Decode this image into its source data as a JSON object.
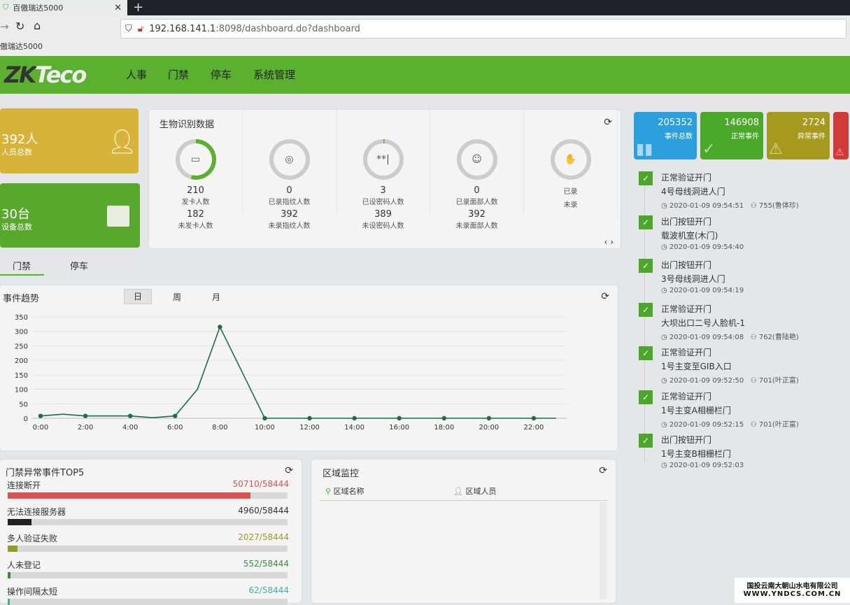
{
  "browser": {
    "tab_title": "百傲瑞达5000",
    "url_host": "192.168.141.1",
    "url_rest": ":8098/dashboard.do?dashboard",
    "bookmark": "傲瑞达5000"
  },
  "header": {
    "logo": "ZKTeco",
    "menu": [
      "人事",
      "门禁",
      "停车",
      "系统管理"
    ]
  },
  "summary": [
    {
      "value": "392人",
      "label": "人员总数",
      "color": "#d8b33a"
    },
    {
      "value": "30台",
      "label": "设备总数",
      "color": "#58a82e"
    }
  ],
  "bio": {
    "title": "生物识别数据",
    "items": [
      {
        "icon": "card-icon",
        "top_value": "210",
        "top_label": "发卡人数",
        "bottom_value": "182",
        "bottom_label": "未发卡人数",
        "fill": 0.54
      },
      {
        "icon": "fingerprint-icon",
        "top_value": "0",
        "top_label": "已录指纹人数",
        "bottom_value": "392",
        "bottom_label": "未录指纹人数",
        "fill": 0
      },
      {
        "icon": "password-icon",
        "top_value": "3",
        "top_label": "已设密码人数",
        "bottom_value": "389",
        "bottom_label": "未设密码人数",
        "fill": 0.01
      },
      {
        "icon": "face-icon",
        "top_value": "0",
        "top_label": "已录面部人数",
        "bottom_value": "392",
        "bottom_label": "未录面部人数",
        "fill": 0
      },
      {
        "icon": "palm-icon",
        "top_value": "",
        "top_label": "已录",
        "bottom_value": "",
        "bottom_label": "未录",
        "fill": 0
      }
    ]
  },
  "event_stats": [
    {
      "value": "205352",
      "label": "事件总数",
      "color": "#2d9fde"
    },
    {
      "value": "146908",
      "label": "正常事件",
      "color": "#4aa82a"
    },
    {
      "value": "2724",
      "label": "异常事件",
      "color": "#a59a1e"
    },
    {
      "value": "",
      "label": "",
      "color": "#d23a3a"
    }
  ],
  "tabs": [
    "门禁",
    "停车"
  ],
  "trend": {
    "title": "事件趋势",
    "periods": [
      "日",
      "周",
      "月"
    ],
    "active_period": "日"
  },
  "chart_data": {
    "type": "line",
    "x": [
      "0:00",
      "1:00",
      "2:00",
      "3:00",
      "4:00",
      "5:00",
      "6:00",
      "7:00",
      "8:00",
      "9:00",
      "10:00",
      "11:00",
      "12:00",
      "13:00",
      "14:00",
      "15:00",
      "16:00",
      "17:00",
      "18:00",
      "19:00",
      "20:00",
      "21:00",
      "22:00",
      "23:00"
    ],
    "xticks": [
      "0:00",
      "2:00",
      "4:00",
      "6:00",
      "8:00",
      "10:00",
      "12:00",
      "14:00",
      "16:00",
      "18:00",
      "20:00",
      "22:00"
    ],
    "values": [
      8,
      14,
      8,
      8,
      8,
      2,
      8,
      100,
      315,
      158,
      0,
      0,
      0,
      0,
      0,
      0,
      0,
      0,
      0,
      0,
      0,
      0,
      0,
      0
    ],
    "ylim": [
      0,
      350
    ],
    "yticks": [
      0,
      50,
      100,
      150,
      200,
      250,
      300,
      350
    ],
    "color": "#1f6b4c",
    "grid": true
  },
  "top5": {
    "title": "门禁异常事件TOP5",
    "items": [
      {
        "label": "连接断开",
        "value": "50710/58444",
        "fraction": 0.868,
        "color": "#d9534f"
      },
      {
        "label": "无法连接服务器",
        "value": "4960/58444",
        "fraction": 0.085,
        "color": "#222222"
      },
      {
        "label": "多人验证失败",
        "value": "2027/58444",
        "fraction": 0.035,
        "color": "#999926"
      },
      {
        "label": "人未登记",
        "value": "552/58444",
        "fraction": 0.009,
        "color": "#3d8a3d"
      },
      {
        "label": "操作间隔太短",
        "value": "62/58444",
        "fraction": 0.001,
        "color": "#40b0a0"
      }
    ]
  },
  "area": {
    "title": "区域监控",
    "col1": "区域名称",
    "col2": "区域人员"
  },
  "events": [
    {
      "type": "正常验证开门",
      "door": "4号母线洞进人门",
      "time": "2020-01-09 09:54:51",
      "person": "755(鲁体珍)"
    },
    {
      "type": "出门按钮开门",
      "door": "载波机室(木门)",
      "time": "2020-01-09 09:54:40",
      "person": ""
    },
    {
      "type": "出门按钮开门",
      "door": "3号母线洞进人门",
      "time": "2020-01-09 09:54:19",
      "person": ""
    },
    {
      "type": "正常验证开门",
      "door": "大坝出口二号人脸机-1",
      "time": "2020-01-09 09:54:08",
      "person": "762(曹陆艳)"
    },
    {
      "type": "正常验证开门",
      "door": "1号主变至GIB入口",
      "time": "2020-01-09 09:52:50",
      "person": "701(叶正富)"
    },
    {
      "type": "正常验证开门",
      "door": "1号主变A相栅栏门",
      "time": "2020-01-09 09:52:15",
      "person": "701(叶正富)"
    },
    {
      "type": "出门按钮开门",
      "door": "1号主变B相栅栏门",
      "time": "2020-01-09 09:52:03",
      "person": ""
    }
  ],
  "watermark": {
    "line1": "国投云南大朝山水电有限公司",
    "line2": "WWW.YNDCS.COM.CN"
  }
}
